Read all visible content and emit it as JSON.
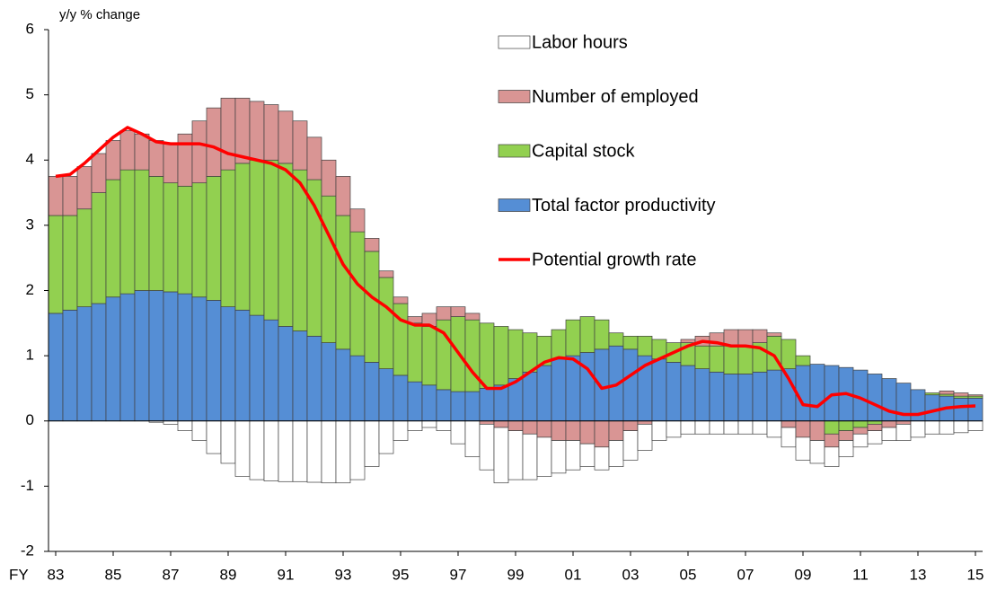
{
  "chart_data": {
    "type": "bar",
    "stacked": true,
    "y_label": "y/y % change",
    "x_label": "FY",
    "legend": "upper right",
    "ylim": [
      -2,
      6
    ],
    "yticks": [
      -2,
      -1,
      0,
      1,
      2,
      3,
      4,
      5,
      6
    ],
    "categories": [
      "83",
      null,
      null,
      null,
      "85",
      null,
      null,
      null,
      "87",
      null,
      null,
      null,
      "89",
      null,
      null,
      null,
      "91",
      null,
      null,
      null,
      "93",
      null,
      null,
      null,
      "95",
      null,
      null,
      null,
      "97",
      null,
      null,
      null,
      "99",
      null,
      null,
      null,
      "01",
      null,
      null,
      null,
      "03",
      null,
      null,
      null,
      "05",
      null,
      null,
      null,
      "07",
      null,
      null,
      null,
      "09",
      null,
      null,
      null,
      "11",
      null,
      null,
      null,
      "13",
      null,
      null,
      null,
      "15"
    ],
    "series": [
      {
        "name": "Labor hours",
        "color": "#ffffff",
        "type": "bar",
        "values": [
          0,
          0,
          0,
          0,
          0,
          0,
          0,
          -0.02,
          -0.05,
          -0.15,
          -0.3,
          -0.5,
          -0.65,
          -0.85,
          -0.9,
          -0.92,
          -0.93,
          -0.93,
          -0.94,
          -0.95,
          -0.95,
          -0.9,
          -0.7,
          -0.5,
          -0.3,
          -0.15,
          -0.1,
          -0.15,
          -0.35,
          -0.55,
          -0.7,
          -0.85,
          -0.75,
          -0.7,
          -0.6,
          -0.5,
          -0.45,
          -0.35,
          -0.35,
          -0.4,
          -0.45,
          -0.4,
          -0.3,
          -0.25,
          -0.2,
          -0.2,
          -0.2,
          -0.2,
          -0.2,
          -0.2,
          -0.25,
          -0.3,
          -0.35,
          -0.35,
          -0.3,
          -0.25,
          -0.2,
          -0.2,
          -0.2,
          -0.25,
          -0.25,
          -0.2,
          -0.2,
          -0.18,
          -0.15
        ]
      },
      {
        "name": "Number of employed",
        "color": "#d99594",
        "type": "bar",
        "values": [
          0.6,
          0.6,
          0.65,
          0.6,
          0.6,
          0.6,
          0.55,
          0.55,
          0.6,
          0.8,
          0.95,
          1.05,
          1.1,
          1.0,
          0.9,
          0.85,
          0.8,
          0.75,
          0.65,
          0.55,
          0.6,
          0.35,
          0.2,
          0.1,
          0.1,
          0.1,
          0.2,
          0.2,
          0.15,
          0.1,
          -0.05,
          -0.1,
          -0.15,
          -0.2,
          -0.25,
          -0.3,
          -0.3,
          -0.35,
          -0.4,
          -0.3,
          -0.15,
          -0.05,
          0,
          0,
          0.05,
          0.15,
          0.2,
          0.25,
          0.25,
          0.2,
          0.05,
          -0.1,
          -0.25,
          -0.3,
          -0.2,
          -0.15,
          -0.1,
          -0.1,
          -0.1,
          -0.05,
          0,
          0,
          0.05,
          0.05,
          0.02
        ]
      },
      {
        "name": "Capital stock",
        "color": "#92d050",
        "type": "bar",
        "values": [
          1.5,
          1.45,
          1.5,
          1.7,
          1.8,
          1.9,
          1.85,
          1.75,
          1.67,
          1.65,
          1.75,
          1.9,
          2.1,
          2.25,
          2.38,
          2.45,
          2.5,
          2.47,
          2.4,
          2.25,
          2.05,
          1.9,
          1.7,
          1.4,
          1.1,
          0.9,
          0.9,
          1.07,
          1.15,
          1.1,
          1.0,
          0.9,
          0.75,
          0.6,
          0.45,
          0.45,
          0.55,
          0.55,
          0.45,
          0.2,
          0.2,
          0.3,
          0.3,
          0.3,
          0.35,
          0.35,
          0.4,
          0.43,
          0.43,
          0.45,
          0.52,
          0.45,
          0.15,
          0,
          -0.2,
          -0.15,
          -0.1,
          -0.05,
          0,
          0,
          0,
          0.03,
          0.03,
          0.03,
          0.03
        ]
      },
      {
        "name": "Total factor productivity",
        "color": "#558ed5",
        "type": "bar",
        "values": [
          1.65,
          1.7,
          1.75,
          1.8,
          1.9,
          1.95,
          2.0,
          2.0,
          1.98,
          1.95,
          1.9,
          1.85,
          1.75,
          1.7,
          1.62,
          1.55,
          1.45,
          1.38,
          1.3,
          1.2,
          1.1,
          1.0,
          0.9,
          0.8,
          0.7,
          0.6,
          0.55,
          0.48,
          0.45,
          0.45,
          0.5,
          0.55,
          0.65,
          0.75,
          0.85,
          0.95,
          1.0,
          1.05,
          1.1,
          1.15,
          1.1,
          1.0,
          0.95,
          0.9,
          0.85,
          0.8,
          0.75,
          0.72,
          0.72,
          0.75,
          0.78,
          0.8,
          0.85,
          0.87,
          0.85,
          0.82,
          0.78,
          0.72,
          0.65,
          0.58,
          0.48,
          0.4,
          0.38,
          0.35,
          0.35
        ]
      },
      {
        "name": "Potential growth rate",
        "color": "#ff0000",
        "type": "line",
        "values": [
          3.75,
          3.78,
          3.95,
          4.15,
          4.35,
          4.5,
          4.4,
          4.28,
          4.25,
          4.25,
          4.25,
          4.2,
          4.1,
          4.05,
          4.0,
          3.95,
          3.85,
          3.65,
          3.3,
          2.85,
          2.4,
          2.1,
          1.9,
          1.75,
          1.55,
          1.47,
          1.47,
          1.35,
          1.05,
          0.75,
          0.5,
          0.5,
          0.6,
          0.75,
          0.9,
          0.97,
          0.95,
          0.8,
          0.5,
          0.55,
          0.7,
          0.85,
          0.95,
          1.05,
          1.15,
          1.22,
          1.2,
          1.15,
          1.15,
          1.12,
          1.0,
          0.65,
          0.25,
          0.22,
          0.4,
          0.42,
          0.35,
          0.25,
          0.15,
          0.1,
          0.1,
          0.15,
          0.2,
          0.22,
          0.23
        ]
      }
    ]
  }
}
